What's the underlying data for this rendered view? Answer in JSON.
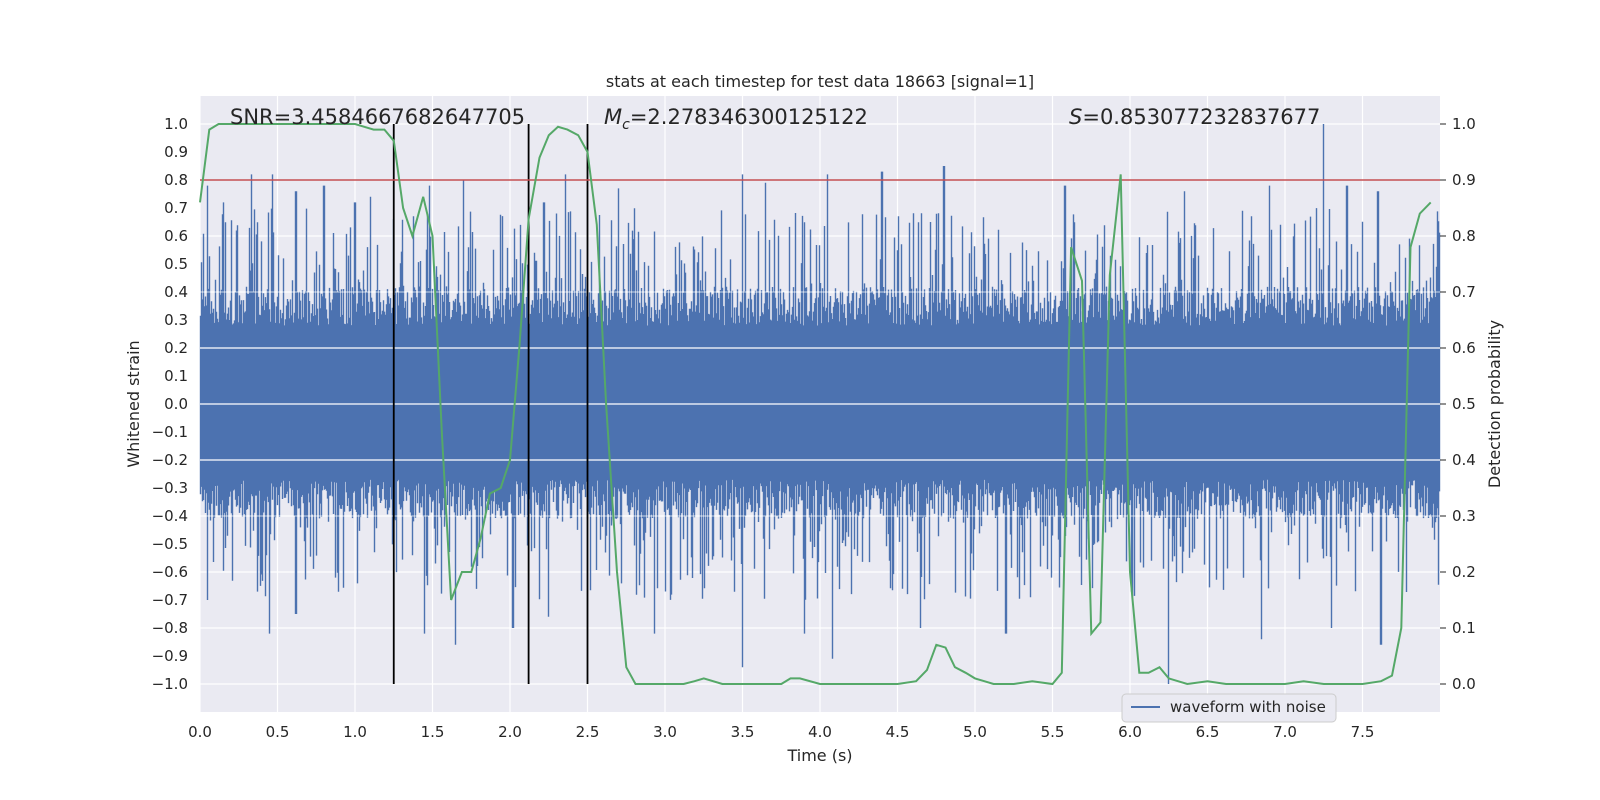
{
  "chart_data": {
    "type": "line",
    "title": "stats at each timestep for test data 18663 [signal=1]",
    "xlabel": "Time (s)",
    "ylabel": "Whitened strain",
    "ylabel_right": "Detection probability",
    "xlim": [
      0.0,
      8.0
    ],
    "ylim": [
      -1.1,
      1.1
    ],
    "ylim_right": [
      -0.05,
      1.05
    ],
    "x_ticks": [
      0.0,
      0.5,
      1.0,
      1.5,
      2.0,
      2.5,
      3.0,
      3.5,
      4.0,
      4.5,
      5.0,
      5.5,
      6.0,
      6.5,
      7.0,
      7.5
    ],
    "x_tick_labels": [
      "0.0",
      "0.5",
      "1.0",
      "1.5",
      "2.0",
      "2.5",
      "3.0",
      "3.5",
      "4.0",
      "4.5",
      "5.0",
      "5.5",
      "6.0",
      "6.5",
      "7.0",
      "7.5"
    ],
    "y_ticks": [
      1.0,
      0.9,
      0.8,
      0.7,
      0.6,
      0.5,
      0.4,
      0.3,
      0.2,
      0.1,
      0.0,
      -0.1,
      -0.2,
      -0.3,
      -0.4,
      -0.5,
      -0.6,
      -0.7,
      -0.8,
      -0.9,
      -1.0
    ],
    "y_tick_labels": [
      "1.0",
      "0.9",
      "0.8",
      "0.7",
      "0.6",
      "0.5",
      "0.4",
      "0.3",
      "0.2",
      "0.1",
      "0.0",
      "−0.1",
      "−0.2",
      "−0.3",
      "−0.4",
      "−0.5",
      "−0.6",
      "−0.7",
      "−0.8",
      "−0.9",
      "−1.0"
    ],
    "y_right_ticks": [
      1.0,
      0.9,
      0.8,
      0.7,
      0.6,
      0.5,
      0.4,
      0.3,
      0.2,
      0.1,
      0.0
    ],
    "y_right_tick_labels": [
      "1.0",
      "0.9",
      "0.8",
      "0.7",
      "0.6",
      "0.5",
      "0.4",
      "0.3",
      "0.2",
      "0.1",
      "0.0"
    ],
    "annotations": {
      "snr": "SNR=3.4584667682647705",
      "mc_symbol": "M",
      "mc_sub": "c",
      "mc_value": "=2.278346300125122",
      "s_symbol": "S",
      "s_value": "=0.853077232837677"
    },
    "threshold": {
      "y_right": 0.9,
      "color": "#c44e52"
    },
    "vertical_lines": [
      {
        "x": 1.25,
        "ymin": -1.0,
        "ymax": 1.0
      },
      {
        "x": 2.12,
        "ymin": -1.0,
        "ymax": 1.0
      },
      {
        "x": 2.5,
        "ymin": -1.0,
        "ymax": 1.0
      }
    ],
    "series": [
      {
        "name": "waveform with noise",
        "axis": "left",
        "color": "#4c72b0",
        "kind": "noise",
        "typical_range": [
          -0.35,
          0.4
        ],
        "peaks": [
          [
            0.05,
            0.78
          ],
          [
            0.15,
            0.72
          ],
          [
            0.33,
            0.82
          ],
          [
            0.47,
            0.82
          ],
          [
            0.62,
            0.76
          ],
          [
            0.8,
            0.78
          ],
          [
            1.0,
            0.72
          ],
          [
            1.1,
            0.74
          ],
          [
            1.48,
            0.78
          ],
          [
            1.7,
            0.8
          ],
          [
            2.22,
            0.72
          ],
          [
            2.36,
            0.82
          ],
          [
            2.7,
            0.77
          ],
          [
            3.5,
            0.82
          ],
          [
            3.65,
            0.79
          ],
          [
            4.05,
            0.82
          ],
          [
            4.4,
            0.83
          ],
          [
            4.8,
            0.85
          ],
          [
            5.58,
            0.78
          ],
          [
            6.35,
            0.76
          ],
          [
            6.9,
            0.78
          ],
          [
            7.25,
            1.0
          ],
          [
            7.4,
            0.78
          ],
          [
            7.6,
            0.76
          ]
        ],
        "troughs": [
          [
            0.05,
            -0.7
          ],
          [
            0.45,
            -0.82
          ],
          [
            0.62,
            -0.75
          ],
          [
            1.45,
            -0.82
          ],
          [
            1.65,
            -0.86
          ],
          [
            2.02,
            -0.8
          ],
          [
            2.25,
            -0.76
          ],
          [
            2.93,
            -0.82
          ],
          [
            3.5,
            -0.94
          ],
          [
            3.9,
            -0.82
          ],
          [
            4.08,
            -0.91
          ],
          [
            4.65,
            -0.8
          ],
          [
            5.2,
            -0.82
          ],
          [
            6.25,
            -1.0
          ],
          [
            6.85,
            -0.84
          ],
          [
            7.3,
            -0.8
          ],
          [
            7.62,
            -0.86
          ]
        ]
      },
      {
        "name": "detection probability",
        "axis": "right",
        "color": "#55a868",
        "x": [
          0.0,
          0.06,
          0.12,
          0.19,
          0.25,
          0.31,
          0.37,
          0.44,
          0.5,
          0.56,
          0.62,
          0.69,
          0.75,
          0.81,
          0.87,
          0.94,
          1.0,
          1.06,
          1.12,
          1.19,
          1.25,
          1.31,
          1.37,
          1.44,
          1.5,
          1.56,
          1.62,
          1.69,
          1.75,
          1.81,
          1.87,
          1.94,
          2.0,
          2.06,
          2.12,
          2.19,
          2.25,
          2.31,
          2.37,
          2.44,
          2.5,
          2.56,
          2.62,
          2.69,
          2.75,
          2.81,
          2.87,
          3.0,
          3.12,
          3.19,
          3.25,
          3.37,
          3.5,
          3.62,
          3.75,
          3.81,
          3.87,
          4.0,
          4.12,
          4.25,
          4.5,
          4.62,
          4.69,
          4.75,
          4.81,
          4.87,
          4.94,
          5.0,
          5.06,
          5.12,
          5.25,
          5.37,
          5.5,
          5.56,
          5.62,
          5.69,
          5.75,
          5.81,
          5.87,
          5.94,
          6.0,
          6.06,
          6.12,
          6.19,
          6.25,
          6.31,
          6.37,
          6.5,
          6.62,
          6.75,
          7.0,
          7.12,
          7.25,
          7.5,
          7.62,
          7.69,
          7.75,
          7.81,
          7.87,
          7.94
        ],
        "values": [
          0.86,
          0.99,
          1.0,
          1.0,
          1.0,
          1.0,
          1.0,
          1.0,
          1.0,
          1.0,
          1.0,
          1.0,
          1.0,
          1.0,
          1.0,
          1.0,
          1.0,
          0.995,
          0.99,
          0.99,
          0.97,
          0.85,
          0.8,
          0.87,
          0.8,
          0.45,
          0.15,
          0.2,
          0.2,
          0.26,
          0.34,
          0.35,
          0.4,
          0.6,
          0.83,
          0.94,
          0.98,
          0.995,
          0.99,
          0.98,
          0.95,
          0.82,
          0.5,
          0.2,
          0.03,
          0.0,
          0.0,
          0.0,
          0.0,
          0.005,
          0.01,
          0.0,
          0.0,
          0.0,
          0.0,
          0.01,
          0.01,
          0.0,
          0.0,
          0.0,
          0.0,
          0.005,
          0.025,
          0.07,
          0.065,
          0.03,
          0.02,
          0.01,
          0.005,
          0.0,
          0.0,
          0.005,
          0.0,
          0.02,
          0.78,
          0.72,
          0.09,
          0.11,
          0.73,
          0.91,
          0.2,
          0.02,
          0.02,
          0.03,
          0.01,
          0.005,
          0.0,
          0.005,
          0.0,
          0.0,
          0.0,
          0.005,
          0.0,
          0.0,
          0.005,
          0.015,
          0.1,
          0.78,
          0.84,
          0.86
        ]
      }
    ],
    "legend": {
      "label": "waveform with noise",
      "location": "lower right"
    }
  },
  "colors": {
    "axes_bg": "#eaeaf2",
    "grid": "#ffffff",
    "waveform": "#4c72b0",
    "probability": "#55a868",
    "threshold": "#c44e52",
    "vlines": "#000000"
  }
}
